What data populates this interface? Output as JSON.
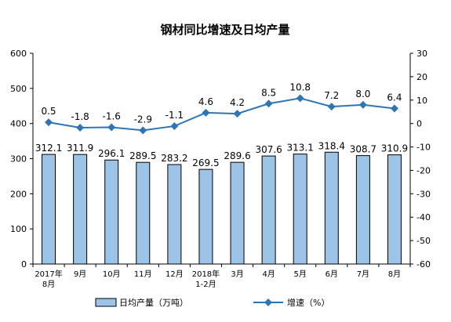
{
  "chart_data": {
    "type": "bar+line",
    "title": "钢材同比增速及日均产量",
    "categories": [
      [
        "2017年",
        "8月"
      ],
      [
        "9月"
      ],
      [
        "10月"
      ],
      [
        "11月"
      ],
      [
        "12月"
      ],
      [
        "2018年",
        "1-2月"
      ],
      [
        "3月"
      ],
      [
        "4月"
      ],
      [
        "5月"
      ],
      [
        "6月"
      ],
      [
        "7月"
      ],
      [
        "8月"
      ]
    ],
    "series": [
      {
        "name": "日均产量（万吨）",
        "kind": "bar",
        "axis": "left",
        "values": [
          312.1,
          311.9,
          296.1,
          289.5,
          283.2,
          269.5,
          289.6,
          307.6,
          313.1,
          318.4,
          308.7,
          310.9
        ],
        "color": "#9dc3e6",
        "border": "#000000"
      },
      {
        "name": "增速（%）",
        "kind": "line",
        "axis": "right",
        "values": [
          0.5,
          -1.8,
          -1.6,
          -2.9,
          -1.1,
          4.6,
          4.2,
          8.5,
          10.8,
          7.2,
          8.0,
          6.4
        ],
        "labels": [
          "0.5",
          "-1.8",
          "-1.6",
          "-2.9",
          "-1.1",
          "4.6",
          "4.2",
          "8.5",
          "10.8",
          "7.2",
          "8.0",
          "6.4"
        ],
        "color": "#2e75b6",
        "marker": "diamond"
      }
    ],
    "y_left": {
      "min": 0,
      "max": 600,
      "step": 100
    },
    "y_right": {
      "min": -60,
      "max": 30,
      "step": 10
    },
    "grid": false,
    "legend_position": "bottom"
  }
}
